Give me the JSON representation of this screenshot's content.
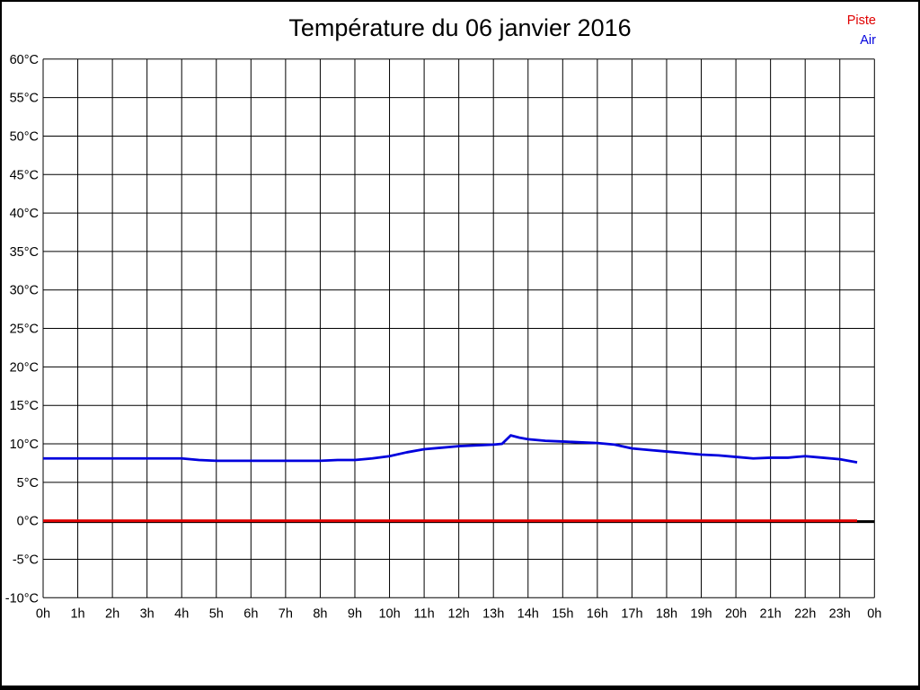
{
  "title": "Température du 06 janvier 2016",
  "legend": [
    {
      "label": "Piste",
      "color": "#e00000"
    },
    {
      "label": "Air",
      "color": "#0000dd"
    }
  ],
  "colors": {
    "background": "#ffffff",
    "border": "#000000",
    "grid": "#000000",
    "zero_axis": "#000000",
    "text": "#000000",
    "piste_line": "#e00000",
    "air_line": "#0000dd"
  },
  "chart_data": {
    "type": "line",
    "title": "Température du 06 janvier 2016",
    "xlabel": "",
    "ylabel": "",
    "xlim": [
      0,
      24
    ],
    "ylim": [
      -10,
      60
    ],
    "y_step": 5,
    "grid": true,
    "legend_position": "top-right",
    "x_tick_labels": [
      "0h",
      "1h",
      "2h",
      "3h",
      "4h",
      "5h",
      "6h",
      "7h",
      "8h",
      "9h",
      "10h",
      "11h",
      "12h",
      "13h",
      "14h",
      "15h",
      "16h",
      "17h",
      "18h",
      "19h",
      "20h",
      "21h",
      "22h",
      "23h",
      "0h"
    ],
    "y_tick_labels": [
      "60°C",
      "55°C",
      "50°C",
      "45°C",
      "40°C",
      "35°C",
      "30°C",
      "25°C",
      "20°C",
      "15°C",
      "10°C",
      "5°C",
      "0°C",
      "-5°C",
      "-10°C"
    ],
    "x": [
      0,
      0.5,
      1,
      1.5,
      2,
      2.5,
      3,
      3.5,
      4,
      4.5,
      5,
      5.5,
      6,
      6.5,
      7,
      7.5,
      8,
      8.5,
      9,
      9.5,
      10,
      10.5,
      11,
      11.5,
      12,
      12.5,
      13,
      13.25,
      13.5,
      13.75,
      14,
      14.5,
      15,
      15.5,
      16,
      16.5,
      17,
      17.5,
      18,
      18.5,
      19,
      19.5,
      20,
      20.5,
      21,
      21.5,
      22,
      22.5,
      23,
      23.5
    ],
    "series": [
      {
        "name": "Piste",
        "color": "#e00000",
        "values": [
          0,
          0,
          0,
          0,
          0,
          0,
          0,
          0,
          0,
          0,
          0,
          0,
          0,
          0,
          0,
          0,
          0,
          0,
          0,
          0,
          0,
          0,
          0,
          0,
          0,
          0,
          0,
          0,
          0,
          0,
          0,
          0,
          0,
          0,
          0,
          0,
          0,
          0,
          0,
          0,
          0,
          0,
          0,
          0,
          0,
          0,
          0,
          0,
          0,
          0
        ]
      },
      {
        "name": "Air",
        "color": "#0000dd",
        "values": [
          8.1,
          8.1,
          8.1,
          8.1,
          8.1,
          8.1,
          8.1,
          8.1,
          8.1,
          7.9,
          7.8,
          7.8,
          7.8,
          7.8,
          7.8,
          7.8,
          7.8,
          7.9,
          7.9,
          8.1,
          8.4,
          8.9,
          9.3,
          9.5,
          9.7,
          9.8,
          9.9,
          10.0,
          11.1,
          10.8,
          10.6,
          10.4,
          10.3,
          10.2,
          10.1,
          9.9,
          9.4,
          9.2,
          9.0,
          8.8,
          8.6,
          8.5,
          8.3,
          8.1,
          8.2,
          8.2,
          8.4,
          8.2,
          8.0,
          7.6
        ]
      }
    ]
  }
}
